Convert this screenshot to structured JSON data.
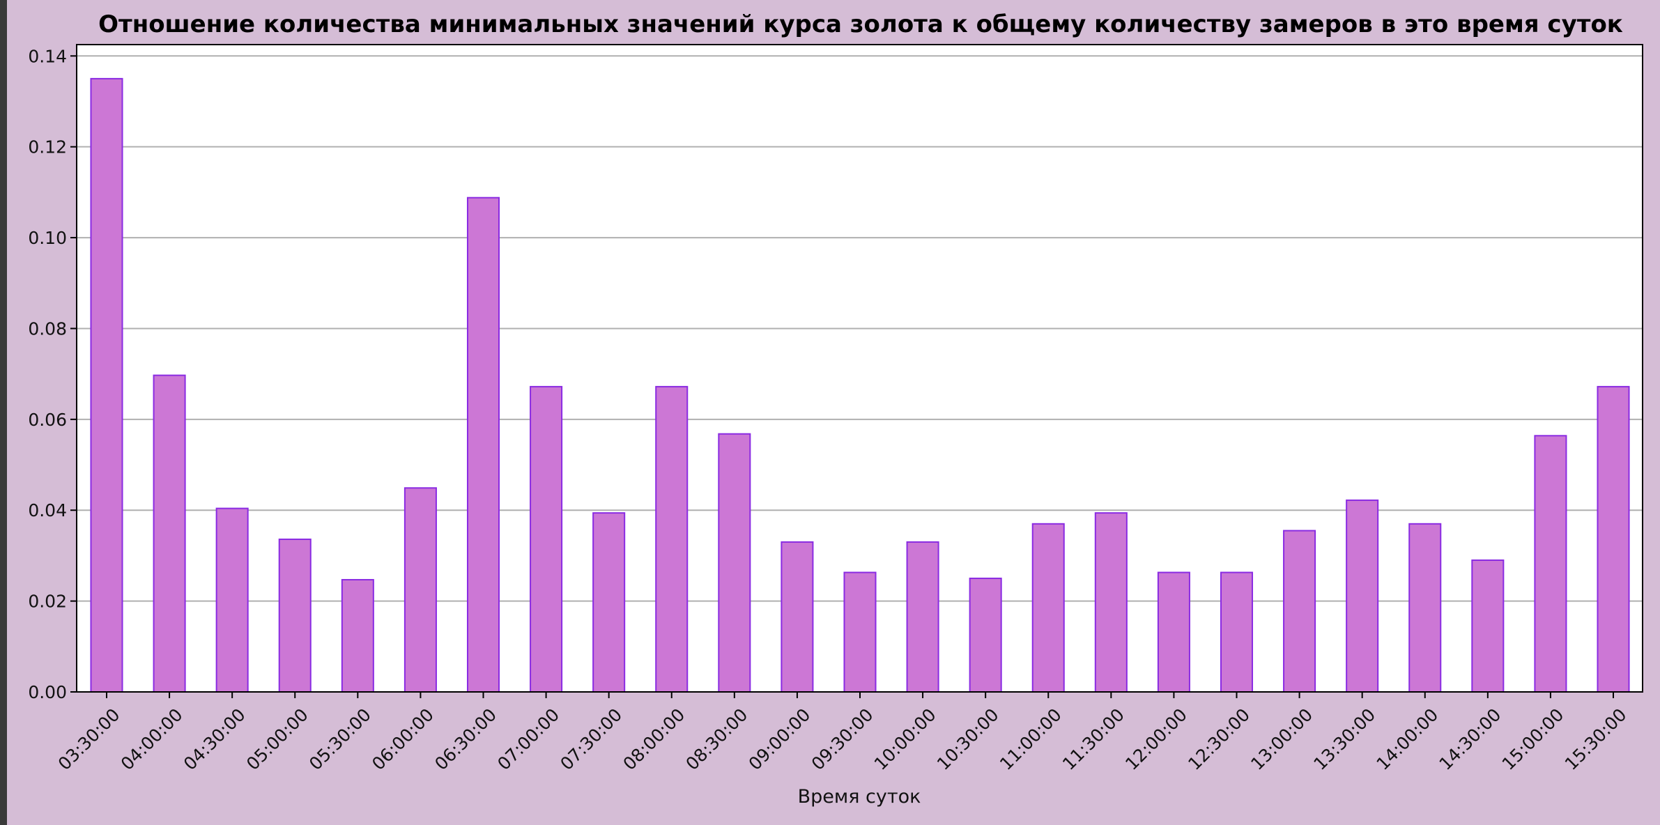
{
  "chart_data": {
    "type": "bar",
    "title": "Отношение количества минимальных значений курса золота к общему количеству замеров в это время суток",
    "xlabel": "Время суток",
    "ylabel": "",
    "categories": [
      "03:30:00",
      "04:00:00",
      "04:30:00",
      "05:00:00",
      "05:30:00",
      "06:00:00",
      "06:30:00",
      "07:00:00",
      "07:30:00",
      "08:00:00",
      "08:30:00",
      "09:00:00",
      "09:30:00",
      "10:00:00",
      "10:30:00",
      "11:00:00",
      "11:30:00",
      "12:00:00",
      "12:30:00",
      "13:00:00",
      "13:30:00",
      "14:00:00",
      "14:30:00",
      "15:00:00",
      "15:30:00"
    ],
    "values": [
      0.135,
      0.0697,
      0.0404,
      0.0336,
      0.0247,
      0.0449,
      0.1088,
      0.0672,
      0.0394,
      0.0672,
      0.0568,
      0.033,
      0.0263,
      0.033,
      0.025,
      0.037,
      0.0394,
      0.0263,
      0.0263,
      0.0355,
      0.0422,
      0.037,
      0.029,
      0.0564,
      0.0672
    ],
    "yticks": [
      "0.00",
      "0.02",
      "0.04",
      "0.06",
      "0.08",
      "0.10",
      "0.12",
      "0.14"
    ],
    "ylim": [
      0,
      0.1425
    ],
    "grid": "horizontal",
    "legend": "none",
    "colors": {
      "bar_fill": "#cc77d5",
      "bar_edge": "#8a2be2",
      "grid": "#b0b0b0",
      "axes_bg": "#ffffff"
    }
  }
}
